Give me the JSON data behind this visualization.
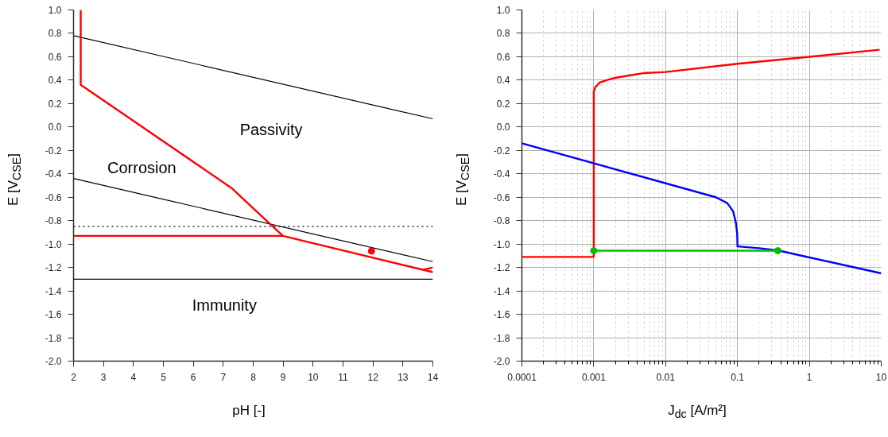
{
  "chart_data": [
    {
      "type": "line",
      "xlabel": "pH [-]",
      "ylabel": "E [V$_{CSE}$]",
      "xlim": [
        2,
        14
      ],
      "ylim": [
        -2.0,
        1.0
      ],
      "xticks": [
        2,
        3,
        4,
        5,
        6,
        7,
        8,
        9,
        10,
        11,
        12,
        13,
        14
      ],
      "yticks": [
        {
          "value": 1.0,
          "label": "1.0"
        },
        {
          "value": 0.8,
          "label": "0.8"
        },
        {
          "value": 0.6,
          "label": "0.6"
        },
        {
          "value": 0.4,
          "label": "0.4"
        },
        {
          "value": 0.2,
          "label": "0.2"
        },
        {
          "value": 0.0,
          "label": "0.0"
        },
        {
          "value": -0.2,
          "label": "-0.2"
        },
        {
          "value": -0.4,
          "label": "-0.4"
        },
        {
          "value": -0.6,
          "label": "-0.6"
        },
        {
          "value": -0.8,
          "label": "-0.8"
        },
        {
          "value": -1.0,
          "label": "-1.0"
        },
        {
          "value": -1.2,
          "label": "-1.2"
        },
        {
          "value": -1.4,
          "label": "-1.4"
        },
        {
          "value": -1.6,
          "label": "-1.6"
        },
        {
          "value": -1.8,
          "label": "-1.8"
        },
        {
          "value": -2.0,
          "label": "-2.0"
        }
      ],
      "grid": false,
      "marker": "none",
      "line_style": "solid",
      "series": [
        {
          "color": "#000000",
          "x": [
            2,
            14
          ],
          "values": [
            0.78,
            0.07
          ]
        },
        {
          "color": "#000000",
          "x": [
            2,
            14
          ],
          "values": [
            -0.44,
            -1.15
          ]
        },
        {
          "color": "#ff0000",
          "x": [
            2.24,
            2.24,
            7.27,
            8.99,
            14
          ],
          "values": [
            1.0,
            0.36,
            -0.52,
            -0.93,
            -1.24
          ]
        },
        {
          "color": "#ff0000",
          "x": [
            2,
            8.99
          ],
          "values": [
            -0.93,
            -0.93
          ]
        },
        {
          "color": "#ff0000",
          "x": [
            13.67,
            14
          ],
          "values": [
            -1.22,
            -1.2
          ]
        },
        {
          "type": "scatter",
          "color": "#ff0000",
          "marker": "circle",
          "x": [
            11.95
          ],
          "values": [
            -1.06
          ]
        }
      ],
      "ref_lines": [
        {
          "axis": "y",
          "value": -0.85,
          "color": "#000000",
          "line_style": "dotted"
        },
        {
          "axis": "y",
          "value": -1.3,
          "color": "#000000",
          "line_style": "solid"
        }
      ],
      "annotations": [
        "Passivity",
        "Corrosion",
        "Immunity"
      ]
    },
    {
      "type": "line",
      "xlabel": "J$_{dc}$ [A/m²]",
      "ylabel": "E [V$_{CSE}$]",
      "log": "x",
      "xlim": [
        0.0001,
        10
      ],
      "ylim": [
        -2.0,
        1.0
      ],
      "xticks": [
        {
          "value": 0.0001,
          "label": "0.0001"
        },
        {
          "value": 0.001,
          "label": "0.001"
        },
        {
          "value": 0.01,
          "label": "0.01"
        },
        {
          "value": 0.1,
          "label": "0.1"
        },
        {
          "value": 1,
          "label": "1"
        },
        {
          "value": 10,
          "label": "10"
        }
      ],
      "yticks": [
        {
          "value": 1.0,
          "label": "1.0"
        },
        {
          "value": 0.8,
          "label": "0.8"
        },
        {
          "value": 0.6,
          "label": "0.6"
        },
        {
          "value": 0.4,
          "label": "0.4"
        },
        {
          "value": 0.2,
          "label": "0.2"
        },
        {
          "value": 0.0,
          "label": "0.0"
        },
        {
          "value": -0.2,
          "label": "-0.2"
        },
        {
          "value": -0.4,
          "label": "-0.4"
        },
        {
          "value": -0.6,
          "label": "-0.6"
        },
        {
          "value": -0.8,
          "label": "-0.8"
        },
        {
          "value": -1.0,
          "label": "-1.0"
        },
        {
          "value": -1.2,
          "label": "-1.2"
        },
        {
          "value": -1.4,
          "label": "-1.4"
        },
        {
          "value": -1.6,
          "label": "-1.6"
        },
        {
          "value": -1.8,
          "label": "-1.8"
        },
        {
          "value": -2.0,
          "label": "-2.0"
        }
      ],
      "grid": true,
      "marker": "none",
      "line_style": "solid",
      "series": [
        {
          "color": "#ff0000",
          "x": [
            0.0001,
            0.001,
            0.001,
            0.00105,
            0.00121,
            0.00151,
            0.00198,
            0.0031,
            0.0049,
            0.01,
            0.1,
            1,
            9.5
          ],
          "values": [
            -1.11,
            -1.11,
            0.3,
            0.34,
            0.38,
            0.4,
            0.42,
            0.44,
            0.46,
            0.47,
            0.54,
            0.6,
            0.66
          ]
        },
        {
          "color": "#0000ff",
          "x": [
            0.0001,
            0.05,
            0.072,
            0.087,
            0.095,
            0.099,
            0.1,
            0.2,
            0.37,
            10
          ],
          "values": [
            -0.14,
            -0.6,
            -0.65,
            -0.72,
            -0.82,
            -0.91,
            -1.02,
            -1.035,
            -1.055,
            -1.25
          ]
        },
        {
          "color": "#00c000",
          "marker": "circle",
          "x": [
            0.001,
            0.365
          ],
          "values": [
            -1.057,
            -1.057
          ]
        }
      ]
    }
  ]
}
